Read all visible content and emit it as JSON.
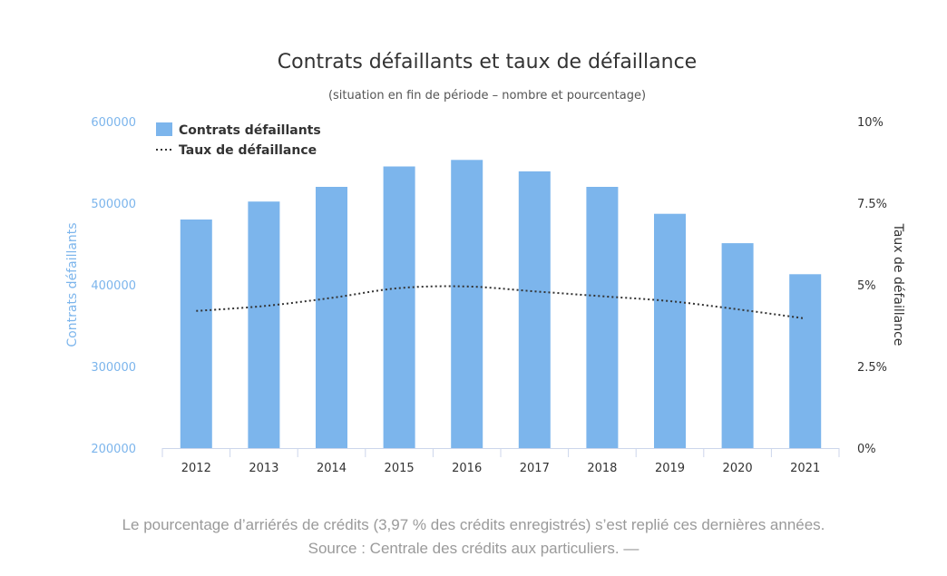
{
  "chart_data": {
    "type": "bar+line",
    "title": "Contrats défaillants et taux de défaillance",
    "subtitle": "(situation en fin de période – nombre et pourcentage)",
    "categories": [
      "2012",
      "2013",
      "2014",
      "2015",
      "2016",
      "2017",
      "2018",
      "2019",
      "2020",
      "2021"
    ],
    "series": [
      {
        "name": "Contrats défaillants",
        "type": "bar",
        "axis": "left",
        "values": [
          480000,
          502000,
          520000,
          545000,
          553000,
          539000,
          520000,
          487000,
          451000,
          413000
        ],
        "color": "#7cb5ec"
      },
      {
        "name": "Taux de défaillance",
        "type": "line",
        "axis": "right",
        "style": "dotted",
        "values": [
          4.2,
          4.35,
          4.6,
          4.9,
          4.95,
          4.8,
          4.65,
          4.5,
          4.25,
          3.97
        ],
        "color": "#333333"
      }
    ],
    "y_left": {
      "label": "Contrats défaillants",
      "min": 200000,
      "max": 600000,
      "ticks": [
        "200000",
        "300000",
        "400000",
        "500000",
        "600000"
      ],
      "tick_values": [
        200000,
        300000,
        400000,
        500000,
        600000
      ],
      "color": "#7cb5ec"
    },
    "y_right": {
      "label": "Taux de défaillance",
      "min": 0,
      "max": 10,
      "ticks": [
        "0%",
        "2.5%",
        "5%",
        "7.5%",
        "10%"
      ],
      "tick_values": [
        0,
        2.5,
        5,
        7.5,
        10
      ],
      "color": "#333333"
    },
    "legend_position": "top-left",
    "grid": false
  },
  "caption": {
    "line1": "Le pourcentage d’arriérés de crédits (3,97 % des crédits enregistrés) s’est replié ces dernières années.",
    "line2": "Source : Centrale des crédits aux particuliers. —"
  }
}
